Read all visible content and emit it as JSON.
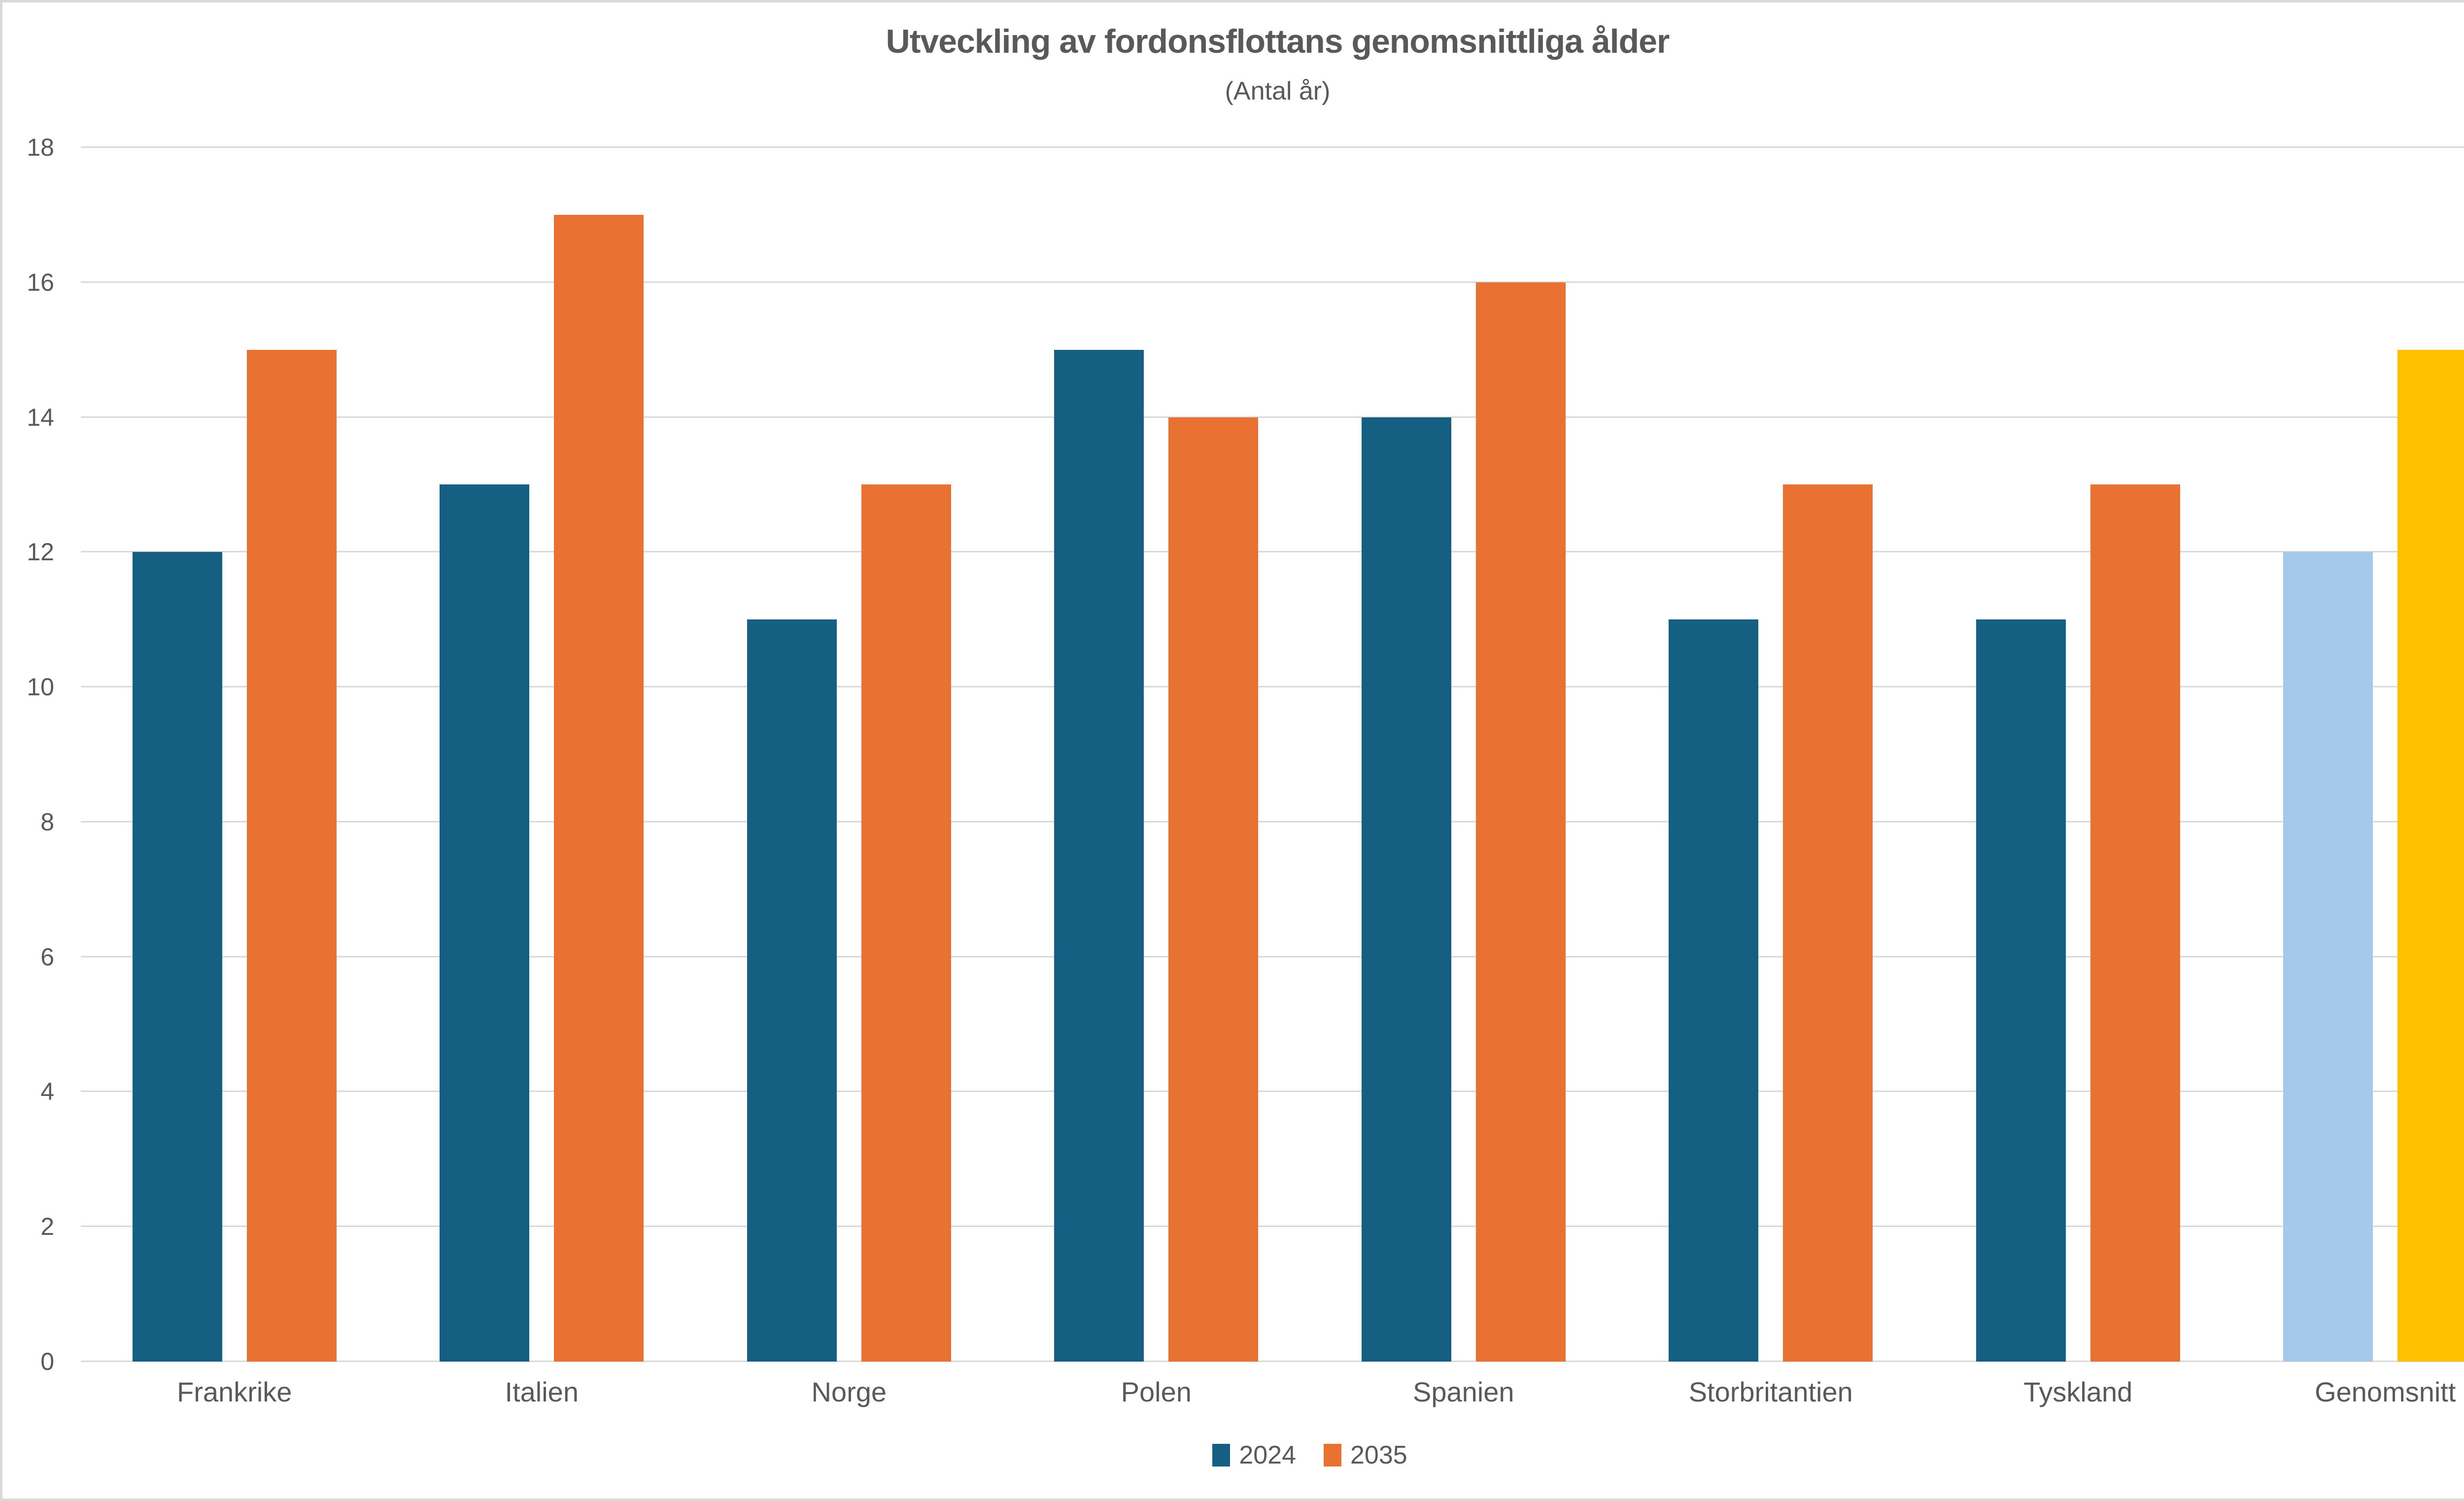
{
  "chart_data": {
    "type": "bar",
    "title": "Utveckling av fordonsflottans genomsnittliga ålder",
    "subtitle": "(Antal år)",
    "categories": [
      "Frankrike",
      "Italien",
      "Norge",
      "Polen",
      "Spanien",
      "Storbritantien",
      "Tyskland",
      "Genomsnitt"
    ],
    "series": [
      {
        "name": "2024",
        "color": "#156082",
        "values": [
          12,
          13,
          11,
          15,
          14,
          11,
          11,
          12
        ]
      },
      {
        "name": "2035",
        "color": "#E97132",
        "values": [
          15,
          17,
          13,
          14,
          16,
          13,
          13,
          15
        ]
      }
    ],
    "highlight": {
      "category": "Genomsnitt",
      "colors": [
        "#A4C9EA",
        "#FFC000"
      ]
    },
    "ylim": [
      0,
      18
    ],
    "ytick_step": 2,
    "yticklabels": [
      "0",
      "2",
      "4",
      "6",
      "8",
      "10",
      "12",
      "14",
      "16",
      "18"
    ],
    "grid": true,
    "legend_position": "bottom",
    "styles": {
      "grid_color": "#D9D9D9",
      "text_color": "#595959",
      "title_color": "#595959",
      "background": "#FFFFFF",
      "border_color": "#D9D9D9"
    }
  }
}
